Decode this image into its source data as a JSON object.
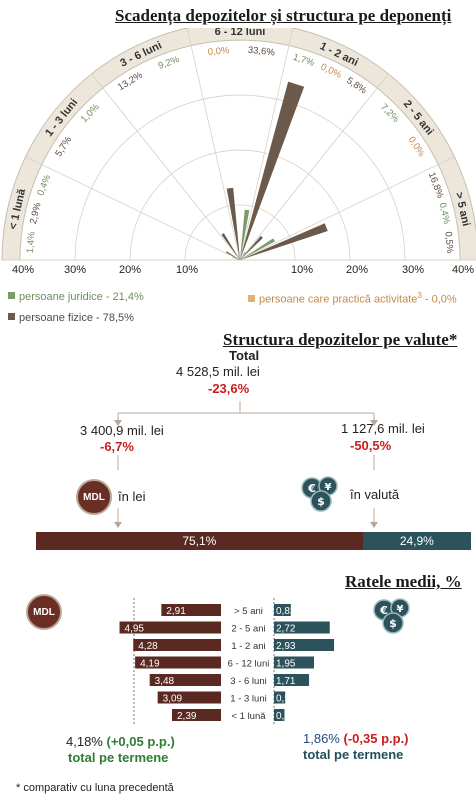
{
  "colors": {
    "juridice": "#7a9a6a",
    "activitate": "#d19a58",
    "fizice": "#6b5a4c",
    "lei": "#5a2a22",
    "valuta": "#2c535b",
    "ring": "#ece6db",
    "ring_border": "#c9bfb2"
  },
  "section1": {
    "title": "Scadența depozitelor și structura pe deponenți",
    "scale_ticks_left": [
      "40%",
      "30%",
      "20%",
      "10%"
    ],
    "scale_ticks_right": [
      "10%",
      "20%",
      "30%",
      "40%"
    ],
    "legend": {
      "juridice": "persoane juridice - 21,4%",
      "activitate": "persoane care practică activitate",
      "activitate_sup": "3",
      "activitate_tail": " - 0,0%",
      "fizice": "persoane fizice - 78,5%"
    }
  },
  "chart_data": [
    {
      "type": "radial-bar",
      "title": "Scadența depozitelor și structura pe deponenți",
      "categories": [
        "< 1 lună",
        "1 - 3 luni",
        "3 - 6 luni",
        "6 - 12 luni",
        "1 - 2 ani",
        "2 - 5 ani",
        "> 5 ani"
      ],
      "series": [
        {
          "name": "persoane juridice - 21,4%",
          "values": [
            1.4,
            0.4,
            1.0,
            9.2,
            1.7,
            7.2,
            0.4
          ]
        },
        {
          "name": "persoane care practică activitate - 0,0%",
          "values": [
            0.0,
            0.0,
            0.0,
            0.0,
            0.0,
            0.0,
            0.0
          ]
        },
        {
          "name": "persoane fizice - 78,5%",
          "values": [
            0.5,
            2.9,
            5.7,
            13.2,
            33.6,
            5.8,
            16.8
          ]
        }
      ],
      "value_labels": [
        [
          "1,4%",
          "2,9%",
          "0,4%"
        ],
        [
          "5,7%",
          "1,0%"
        ],
        [
          "13,2%",
          "9,2%"
        ],
        [
          "0,0%",
          "33,6%"
        ],
        [
          "1,7%",
          "0,0%",
          "5,8%"
        ],
        [
          "7,2%",
          "0,0%"
        ],
        [
          "16,8%",
          "0,4%",
          "0,5%"
        ]
      ],
      "axis_range": [
        0,
        40
      ]
    },
    {
      "type": "bar",
      "title": "Structura depozitelor pe valute*",
      "categories": [
        "în lei",
        "în valută"
      ],
      "values": [
        75.1,
        24.9
      ],
      "value_labels": [
        "75,1%",
        "24,9%"
      ]
    },
    {
      "type": "bar",
      "title": "Ratele medii, %",
      "categories": [
        "> 5 ani",
        "2 - 5 ani",
        "1 - 2 ani",
        "6 - 12 luni",
        "3 - 6 luni",
        "1 - 3 luni",
        "< 1 lună"
      ],
      "series": [
        {
          "name": "MDL",
          "values": [
            2.91,
            4.95,
            4.28,
            4.19,
            3.48,
            3.09,
            2.39
          ],
          "labels": [
            "2,91",
            "4,95",
            "4,28",
            "4,19",
            "3,48",
            "3,09",
            "2,39"
          ]
        },
        {
          "name": "valută",
          "values": [
            0.82,
            2.72,
            2.93,
            1.95,
            1.71,
            0.55,
            0.51
          ],
          "labels": [
            "0,82",
            "2,72",
            "2,93",
            "1,95",
            "1,71",
            "0,55",
            "0,51"
          ]
        }
      ]
    }
  ],
  "section2": {
    "title": "Structura depozitelor pe valute*",
    "total_label": "Total",
    "total_value": "4 528,5 mil. lei",
    "total_change": "-23,6%",
    "lei_value": "3 400,9 mil. lei",
    "lei_change": "-6,7%",
    "valuta_value": "1 127,6 mil. lei",
    "valuta_change": "-50,5%",
    "lei_caption": "în lei",
    "valuta_caption": "în valută",
    "mdl_icon_text": "MDL"
  },
  "section3": {
    "title": "Ratele medii, %",
    "mdl_icon_text": "MDL",
    "lei_total_value": "4,18%",
    "lei_total_change": "(+0,05 p.p.)",
    "lei_total_caption": "total pe termene",
    "val_total_value": "1,86%",
    "val_total_change": "(-0,35 p.p.)",
    "val_total_caption": "total pe termene"
  },
  "footnote": "* comparativ cu luna precedentă"
}
